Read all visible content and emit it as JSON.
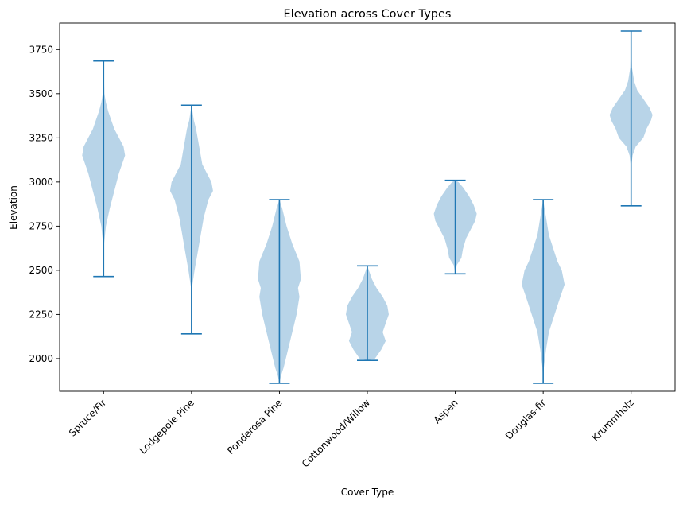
{
  "chart_data": {
    "type": "violin",
    "title": "Elevation across Cover Types",
    "xlabel": "Cover Type",
    "ylabel": "Elevation",
    "ylim": [
      1815,
      3900
    ],
    "yticks": [
      2000,
      2250,
      2500,
      2750,
      3000,
      3250,
      3500,
      3750
    ],
    "grid": false,
    "colors": {
      "fill": "#b8d4e8",
      "line": "#1f77b4"
    },
    "categories": [
      "Spruce/Fir",
      "Lodgepole Pine",
      "Ponderosa Pine",
      "Cottonwood/Willow",
      "Aspen",
      "Douglas-fir",
      "Krummholz"
    ],
    "violins": [
      {
        "category": "Spruce/Fir",
        "min": 2465,
        "max": 3685,
        "profile": [
          [
            2465,
            0
          ],
          [
            2650,
            0.3
          ],
          [
            2750,
            1.5
          ],
          [
            2850,
            4
          ],
          [
            2950,
            7
          ],
          [
            3050,
            10
          ],
          [
            3150,
            14
          ],
          [
            3200,
            13
          ],
          [
            3250,
            10
          ],
          [
            3300,
            7
          ],
          [
            3350,
            5
          ],
          [
            3400,
            3
          ],
          [
            3450,
            1.5
          ],
          [
            3500,
            0.5
          ],
          [
            3685,
            0
          ]
        ]
      },
      {
        "category": "Lodgepole Pine",
        "min": 2140,
        "max": 3435,
        "profile": [
          [
            2140,
            0
          ],
          [
            2400,
            0.3
          ],
          [
            2500,
            2
          ],
          [
            2600,
            4
          ],
          [
            2700,
            6
          ],
          [
            2800,
            8
          ],
          [
            2900,
            11
          ],
          [
            2950,
            14
          ],
          [
            3000,
            13
          ],
          [
            3050,
            10
          ],
          [
            3100,
            7
          ],
          [
            3200,
            5
          ],
          [
            3300,
            3
          ],
          [
            3350,
            1.5
          ],
          [
            3435,
            0
          ]
        ]
      },
      {
        "category": "Ponderosa Pine",
        "min": 1860,
        "max": 2900,
        "profile": [
          [
            1860,
            0
          ],
          [
            1900,
            1
          ],
          [
            1950,
            3
          ],
          [
            2050,
            6
          ],
          [
            2150,
            9
          ],
          [
            2250,
            12
          ],
          [
            2350,
            14
          ],
          [
            2400,
            13
          ],
          [
            2450,
            15
          ],
          [
            2550,
            14
          ],
          [
            2650,
            9
          ],
          [
            2750,
            5
          ],
          [
            2850,
            2
          ],
          [
            2900,
            0
          ]
        ]
      },
      {
        "category": "Cottonwood/Willow",
        "min": 1990,
        "max": 2525,
        "profile": [
          [
            1990,
            0
          ],
          [
            2000,
            5
          ],
          [
            2050,
            9
          ],
          [
            2100,
            12
          ],
          [
            2150,
            10
          ],
          [
            2200,
            12
          ],
          [
            2250,
            14
          ],
          [
            2300,
            13
          ],
          [
            2350,
            10
          ],
          [
            2400,
            6
          ],
          [
            2450,
            3
          ],
          [
            2500,
            1
          ],
          [
            2525,
            0
          ]
        ]
      },
      {
        "category": "Aspen",
        "min": 2480,
        "max": 3010,
        "profile": [
          [
            2480,
            0
          ],
          [
            2530,
            1
          ],
          [
            2570,
            4
          ],
          [
            2620,
            5
          ],
          [
            2680,
            7
          ],
          [
            2730,
            10
          ],
          [
            2780,
            13
          ],
          [
            2820,
            14
          ],
          [
            2870,
            12
          ],
          [
            2920,
            9
          ],
          [
            2970,
            5
          ],
          [
            3000,
            2
          ],
          [
            3010,
            0
          ]
        ]
      },
      {
        "category": "Douglas-fir",
        "min": 1860,
        "max": 2900,
        "profile": [
          [
            1860,
            0
          ],
          [
            1950,
            0.5
          ],
          [
            2050,
            2
          ],
          [
            2150,
            4
          ],
          [
            2250,
            8
          ],
          [
            2350,
            12
          ],
          [
            2420,
            15
          ],
          [
            2500,
            13
          ],
          [
            2550,
            10
          ],
          [
            2600,
            8
          ],
          [
            2650,
            6
          ],
          [
            2700,
            4
          ],
          [
            2800,
            2
          ],
          [
            2900,
            0
          ]
        ]
      },
      {
        "category": "Krummholz",
        "min": 2865,
        "max": 3855,
        "profile": [
          [
            2865,
            0
          ],
          [
            3100,
            0.3
          ],
          [
            3150,
            1
          ],
          [
            3200,
            3
          ],
          [
            3250,
            8
          ],
          [
            3300,
            10
          ],
          [
            3350,
            13
          ],
          [
            3380,
            14
          ],
          [
            3420,
            12
          ],
          [
            3470,
            8
          ],
          [
            3520,
            4
          ],
          [
            3570,
            2
          ],
          [
            3650,
            0.5
          ],
          [
            3855,
            0
          ]
        ]
      }
    ]
  }
}
